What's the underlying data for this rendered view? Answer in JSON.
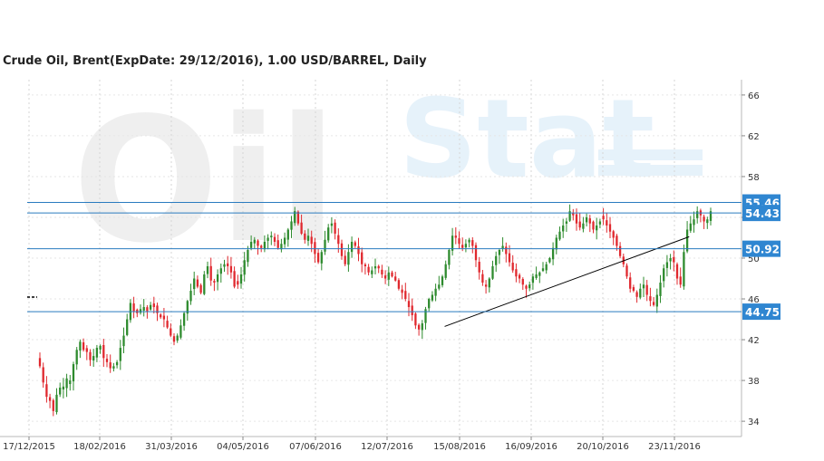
{
  "chart_data": {
    "type": "candlestick",
    "title": "Crude Oil, Brent(ExpDate: 29/12/2016), 1.00 USD/BARREL, Daily",
    "watermark": [
      "Oil",
      "Stat"
    ],
    "ylim": [
      32.5,
      67.5
    ],
    "y_ticks": [
      66,
      62,
      58,
      54,
      50,
      46,
      42,
      38,
      34
    ],
    "x_ticks": [
      "17/12/2015",
      "18/02/2016",
      "31/03/2016",
      "04/05/2016",
      "07/06/2016",
      "12/07/2016",
      "15/08/2016",
      "16/09/2016",
      "20/10/2016",
      "23/11/2016"
    ],
    "grid": true,
    "colors": {
      "up": "#2e8b2e",
      "down": "#e0282e",
      "level": "#2a7bbf",
      "badge": "#2f86d1",
      "trend": "#000000"
    },
    "levels": [
      {
        "value": 55.46,
        "label": "55.46"
      },
      {
        "value": 54.43,
        "label": "54.43"
      },
      {
        "value": 50.92,
        "label": "50.92"
      },
      {
        "value": 44.75,
        "label": "44.75"
      }
    ],
    "trendlines": [
      {
        "from": {
          "date": "08/08/2016",
          "price": 43.3
        },
        "to": {
          "date": "30/11/2016",
          "price": 52.1
        }
      }
    ],
    "closes": [
      39.4,
      37.8,
      36.4,
      36.0,
      35.0,
      36.6,
      37.3,
      37.4,
      38.2,
      38.0,
      39.6,
      41.0,
      41.8,
      41.0,
      40.8,
      40.0,
      40.4,
      41.2,
      41.4,
      40.2,
      39.8,
      39.2,
      39.4,
      39.8,
      41.2,
      42.4,
      44.0,
      45.6,
      44.8,
      44.6,
      45.0,
      45.2,
      44.8,
      45.4,
      45.2,
      44.6,
      44.2,
      44.0,
      43.2,
      42.4,
      41.8,
      42.4,
      43.4,
      44.6,
      45.8,
      46.8,
      48.0,
      47.2,
      46.6,
      48.4,
      49.2,
      47.8,
      47.6,
      48.4,
      49.0,
      49.4,
      49.2,
      48.6,
      47.2,
      47.4,
      48.4,
      49.8,
      50.8,
      51.6,
      51.8,
      51.2,
      51.0,
      51.6,
      52.0,
      52.2,
      51.6,
      51.0,
      51.4,
      52.0,
      52.8,
      53.6,
      54.6,
      53.4,
      52.4,
      51.8,
      52.2,
      51.4,
      50.4,
      49.6,
      50.6,
      51.8,
      53.0,
      53.4,
      52.4,
      51.4,
      50.2,
      49.4,
      50.6,
      51.6,
      51.2,
      50.4,
      49.4,
      49.2,
      48.6,
      48.8,
      49.2,
      49.0,
      48.4,
      48.0,
      48.6,
      48.2,
      47.8,
      47.0,
      46.6,
      46.0,
      45.2,
      44.4,
      43.4,
      43.0,
      43.6,
      45.0,
      46.0,
      46.4,
      47.0,
      47.4,
      48.2,
      49.4,
      50.8,
      52.2,
      52.0,
      51.4,
      51.0,
      51.4,
      51.8,
      51.2,
      49.8,
      48.6,
      47.6,
      47.2,
      48.0,
      49.2,
      50.2,
      50.8,
      51.2,
      50.4,
      49.6,
      48.8,
      48.2,
      48.0,
      47.4,
      47.0,
      47.4,
      48.2,
      48.4,
      48.6,
      49.0,
      49.4,
      50.0,
      51.0,
      52.0,
      52.6,
      53.2,
      53.6,
      54.6,
      54.2,
      53.4,
      53.0,
      53.4,
      54.0,
      53.4,
      52.8,
      53.2,
      53.6,
      53.8,
      53.2,
      52.6,
      52.0,
      51.2,
      50.2,
      49.4,
      48.2,
      47.0,
      46.8,
      46.2,
      47.0,
      47.4,
      46.4,
      45.8,
      45.4,
      46.4,
      47.6,
      49.0,
      49.6,
      50.0,
      49.6,
      48.0,
      47.4,
      50.6,
      52.8,
      53.4,
      53.8,
      54.6,
      54.2,
      53.6,
      53.8,
      54.6
    ]
  }
}
